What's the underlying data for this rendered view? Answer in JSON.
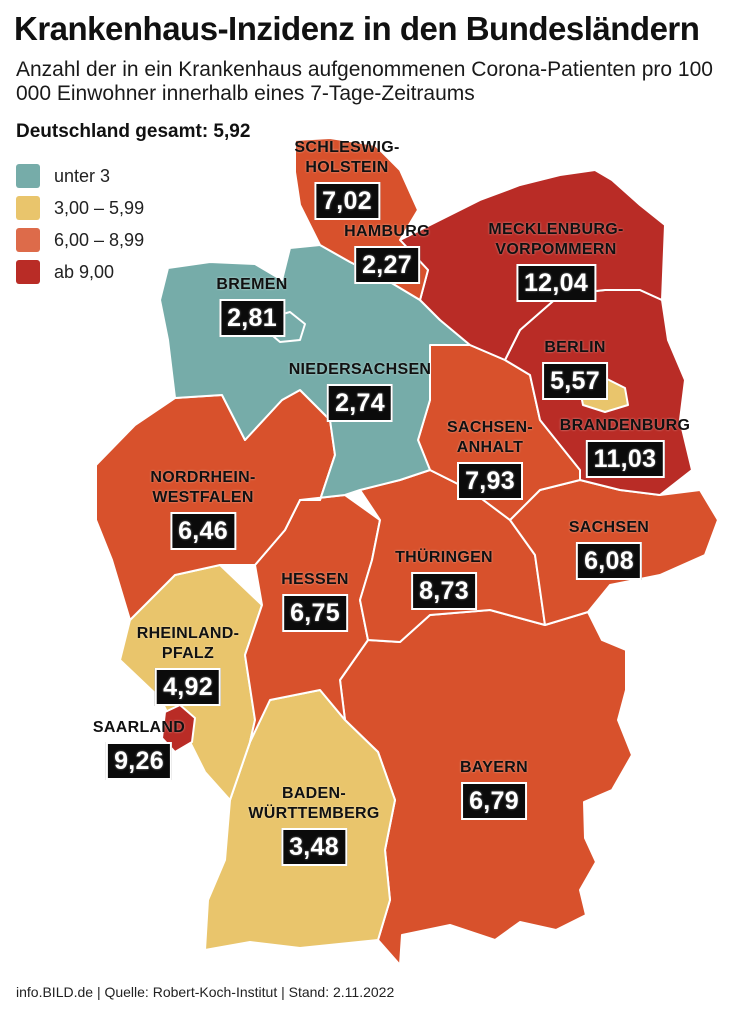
{
  "title": "Krankenhaus-Inzidenz in den Bundesländern",
  "subtitle": "Anzahl der in ein Krankenhaus aufgenommenen Corona-Patienten pro 100 000 Einwohner innerhalb eines 7-Tage-Zeitraums",
  "total": "Deutschland gesamt: 5,92",
  "colors": {
    "teal": "#76aca9",
    "yellow": "#e9c56c",
    "orange": "#d8512c",
    "red": "#b92c26",
    "border": "#ffffff"
  },
  "legend": [
    {
      "label": "unter 3",
      "color": "#76aca9"
    },
    {
      "label": "3,00 – 5,99",
      "color": "#e9c56c"
    },
    {
      "label": "6,00 – 8,99",
      "color": "#dd6b4a"
    },
    {
      "label": "ab 9,00",
      "color": "#b92c26"
    }
  ],
  "states": [
    {
      "name": [
        "SCHLESWIG-",
        "HOLSTEIN"
      ],
      "value": "7,02",
      "category": "orange"
    },
    {
      "name": [
        "HAMBURG"
      ],
      "value": "2,27",
      "category": "teal"
    },
    {
      "name": [
        "MECKLENBURG-",
        "VORPOMMERN"
      ],
      "value": "12,04",
      "category": "red"
    },
    {
      "name": [
        "BREMEN"
      ],
      "value": "2,81",
      "category": "teal"
    },
    {
      "name": [
        "NIEDERSACHSEN"
      ],
      "value": "2,74",
      "category": "teal"
    },
    {
      "name": [
        "BERLIN"
      ],
      "value": "5,57",
      "category": "yellow"
    },
    {
      "name": [
        "BRANDENBURG"
      ],
      "value": "11,03",
      "category": "red"
    },
    {
      "name": [
        "SACHSEN-",
        "ANHALT"
      ],
      "value": "7,93",
      "category": "orange"
    },
    {
      "name": [
        "NORDRHEIN-",
        "WESTFALEN"
      ],
      "value": "6,46",
      "category": "orange"
    },
    {
      "name": [
        "SACHSEN"
      ],
      "value": "6,08",
      "category": "orange"
    },
    {
      "name": [
        "THÜRINGEN"
      ],
      "value": "8,73",
      "category": "orange"
    },
    {
      "name": [
        "HESSEN"
      ],
      "value": "6,75",
      "category": "orange"
    },
    {
      "name": [
        "RHEINLAND-",
        "PFALZ"
      ],
      "value": "4,92",
      "category": "yellow"
    },
    {
      "name": [
        "SAARLAND"
      ],
      "value": "9,26",
      "category": "red"
    },
    {
      "name": [
        "BAYERN"
      ],
      "value": "6,79",
      "category": "orange"
    },
    {
      "name": [
        "BADEN-",
        "WÜRTTEMBERG"
      ],
      "value": "3,48",
      "category": "yellow"
    }
  ],
  "footer": "info.BILD.de | Quelle: Robert-Koch-Institut | Stand: 2.11.2022"
}
